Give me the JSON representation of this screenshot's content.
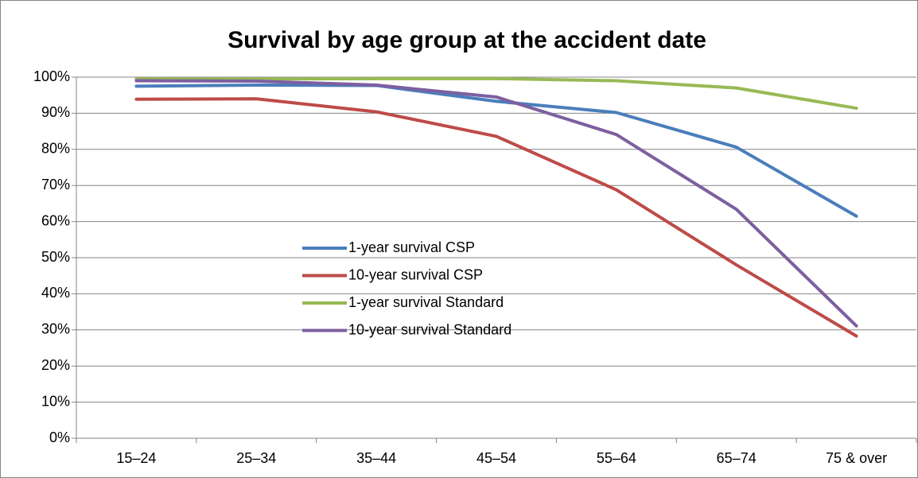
{
  "chart_data": {
    "type": "line",
    "title": "Survival by age group at the accident date",
    "categories": [
      "15–24",
      "25–34",
      "35–44",
      "45–54",
      "55–64",
      "65–74",
      "75 & over"
    ],
    "series": [
      {
        "name": "1-year survival CSP",
        "color": "#4a7ebb",
        "values": [
          97.5,
          97.8,
          97.7,
          93.3,
          90.2,
          80.6,
          61.5
        ]
      },
      {
        "name": "10-year survival CSP",
        "color": "#be4b48",
        "values": [
          93.9,
          94.0,
          90.4,
          83.6,
          68.8,
          48.0,
          28.3
        ]
      },
      {
        "name": "1-year survival Standard",
        "color": "#98b954",
        "values": [
          99.5,
          99.5,
          99.6,
          99.6,
          99.0,
          97.0,
          91.4
        ]
      },
      {
        "name": "10-year survival Standard",
        "color": "#7d5fa0",
        "values": [
          99.0,
          98.9,
          97.8,
          94.5,
          84.1,
          63.4,
          31.1
        ]
      }
    ],
    "ylim": [
      0,
      100
    ],
    "yticks": [
      {
        "value": 0,
        "label": "0%"
      },
      {
        "value": 10,
        "label": "10%"
      },
      {
        "value": 20,
        "label": "20%"
      },
      {
        "value": 30,
        "label": "30%"
      },
      {
        "value": 40,
        "label": "40%"
      },
      {
        "value": 50,
        "label": "50%"
      },
      {
        "value": 60,
        "label": "60%"
      },
      {
        "value": 70,
        "label": "70%"
      },
      {
        "value": 80,
        "label": "80%"
      },
      {
        "value": 90,
        "label": "90%"
      },
      {
        "value": 100,
        "label": "100%"
      }
    ],
    "grid": true,
    "legend": "center"
  }
}
